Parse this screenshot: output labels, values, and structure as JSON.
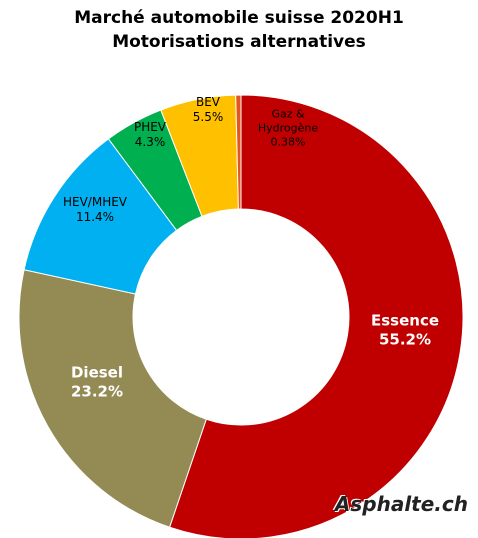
{
  "chart_data": {
    "type": "donut",
    "title": "Marché automobile suisse 2020H1",
    "subtitle": "Motorisations alternatives",
    "categories": [
      "Essence",
      "Diesel",
      "HEV/MHEV",
      "PHEV",
      "BEV",
      "Gaz & Hydrogène"
    ],
    "values": [
      55.2,
      23.2,
      11.4,
      4.3,
      5.5,
      0.38
    ],
    "value_labels": [
      "55.2%",
      "23.2%",
      "11.4%",
      "4.3%",
      "5.5%",
      "0.38%"
    ],
    "colors": [
      "#c00000",
      "#948a54",
      "#00b0f0",
      "#00b050",
      "#ffc000",
      "#e2571e"
    ],
    "watermark": "Asphalte.ch"
  }
}
